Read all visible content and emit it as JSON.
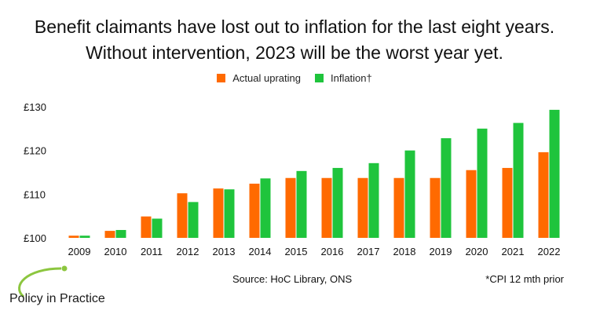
{
  "page": {
    "title_line1": "Benefit claimants have lost out to inflation for the last eight years.",
    "title_line2": "Without intervention, 2023 will be the worst year yet.",
    "source": "Source: HoC Library, ONS",
    "footnote": "*CPI 12 mth prior",
    "logo_text": "Policy in Practice"
  },
  "colors": {
    "actual": "#ff6a00",
    "inflation": "#1fc43c",
    "logo_green": "#8cc63f"
  },
  "chart_data": {
    "type": "bar",
    "categories": [
      "2009",
      "2010",
      "2011",
      "2012",
      "2013",
      "2014",
      "2015",
      "2016",
      "2017",
      "2018",
      "2019",
      "2020",
      "2021",
      "2022"
    ],
    "series": [
      {
        "name": "Actual uprating",
        "values": [
          100.5,
          101.6,
          104.9,
          110.2,
          111.3,
          112.4,
          113.7,
          113.7,
          113.7,
          113.7,
          113.7,
          115.5,
          116.0,
          119.6
        ]
      },
      {
        "name": "Inflation†",
        "values": [
          100.5,
          101.8,
          104.4,
          108.2,
          111.1,
          113.6,
          115.3,
          116.0,
          117.1,
          120.0,
          122.8,
          125.0,
          126.3,
          129.3
        ]
      }
    ],
    "yticks": [
      "£100",
      "£110",
      "£120",
      "£130"
    ],
    "ytick_values": [
      100,
      110,
      120,
      130
    ],
    "ylim": [
      100,
      130
    ],
    "grid": false,
    "legend": "top-center"
  }
}
